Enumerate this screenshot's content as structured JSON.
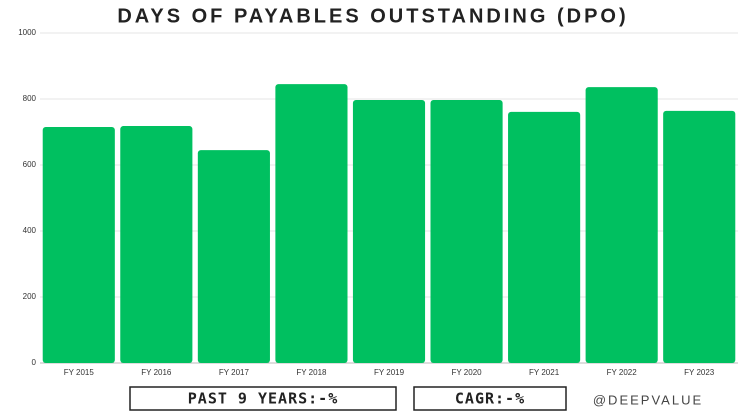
{
  "chart_data": {
    "type": "bar",
    "title": "DAYS OF PAYABLES OUTSTANDING  (DPO)",
    "categories": [
      "FY 2015",
      "FY 2016",
      "FY 2017",
      "FY 2018",
      "FY 2019",
      "FY 2020",
      "FY 2021",
      "FY 2022",
      "FY 2023"
    ],
    "values": [
      715,
      718,
      645,
      845,
      797,
      797,
      761,
      836,
      764
    ],
    "color": "#00c060",
    "ylim": [
      0,
      1000
    ],
    "yticks": [
      0,
      200,
      400,
      600,
      800,
      1000
    ],
    "grid": true,
    "annotations": [
      "PAST 9 YEARS:-%",
      "CAGR:-%",
      "@DEEPVALUE"
    ]
  }
}
